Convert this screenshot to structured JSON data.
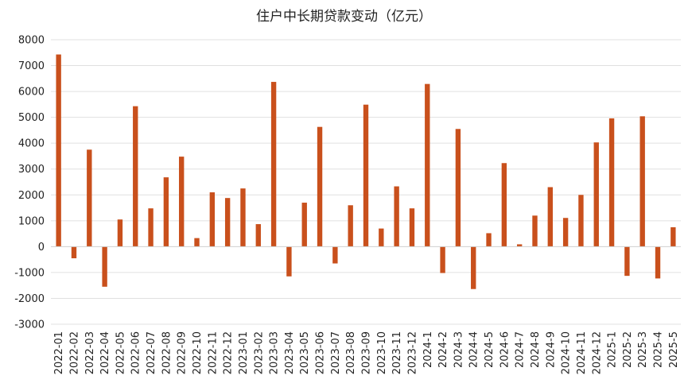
{
  "chart_data": {
    "type": "bar",
    "title": "住户中长期贷款变动（亿元）",
    "xlabel": "",
    "ylabel": "",
    "ylim": [
      -3000,
      8000
    ],
    "yticks": [
      8000,
      7000,
      6000,
      5000,
      4000,
      3000,
      2000,
      1000,
      0,
      -1000,
      -2000,
      -3000
    ],
    "grid": true,
    "legend": "none",
    "bar_color": "#C9501C",
    "categories": [
      "2022-01",
      "2022-02",
      "2022-03",
      "2022-04",
      "2022-05",
      "2022-06",
      "2022-07",
      "2022-08",
      "2022-09",
      "2022-10",
      "2022-11",
      "2022-12",
      "2023-01",
      "2023-02",
      "2023-03",
      "2023-04",
      "2023-05",
      "2023-06",
      "2023-07",
      "2023-08",
      "2023-09",
      "2023-10",
      "2023-11",
      "2023-12",
      "2024-1",
      "2024-2",
      "2024-3",
      "2024-4",
      "2024-5",
      "2024-6",
      "2024-7",
      "2024-8",
      "2024-9",
      "2024-10",
      "2024-11",
      "2024-12",
      "2025-1",
      "2025-2",
      "2025-3",
      "2025-4",
      "2025-5"
    ],
    "values": [
      7430,
      -450,
      3750,
      -1550,
      1050,
      5430,
      1480,
      2680,
      3480,
      330,
      2100,
      1880,
      2250,
      870,
      6370,
      -1150,
      1700,
      4630,
      -650,
      1600,
      5490,
      700,
      2330,
      1480,
      6290,
      -1020,
      4550,
      -1640,
      520,
      3230,
      90,
      1200,
      2300,
      1110,
      2000,
      4030,
      4960,
      -1130,
      5040,
      -1230,
      750
    ]
  }
}
